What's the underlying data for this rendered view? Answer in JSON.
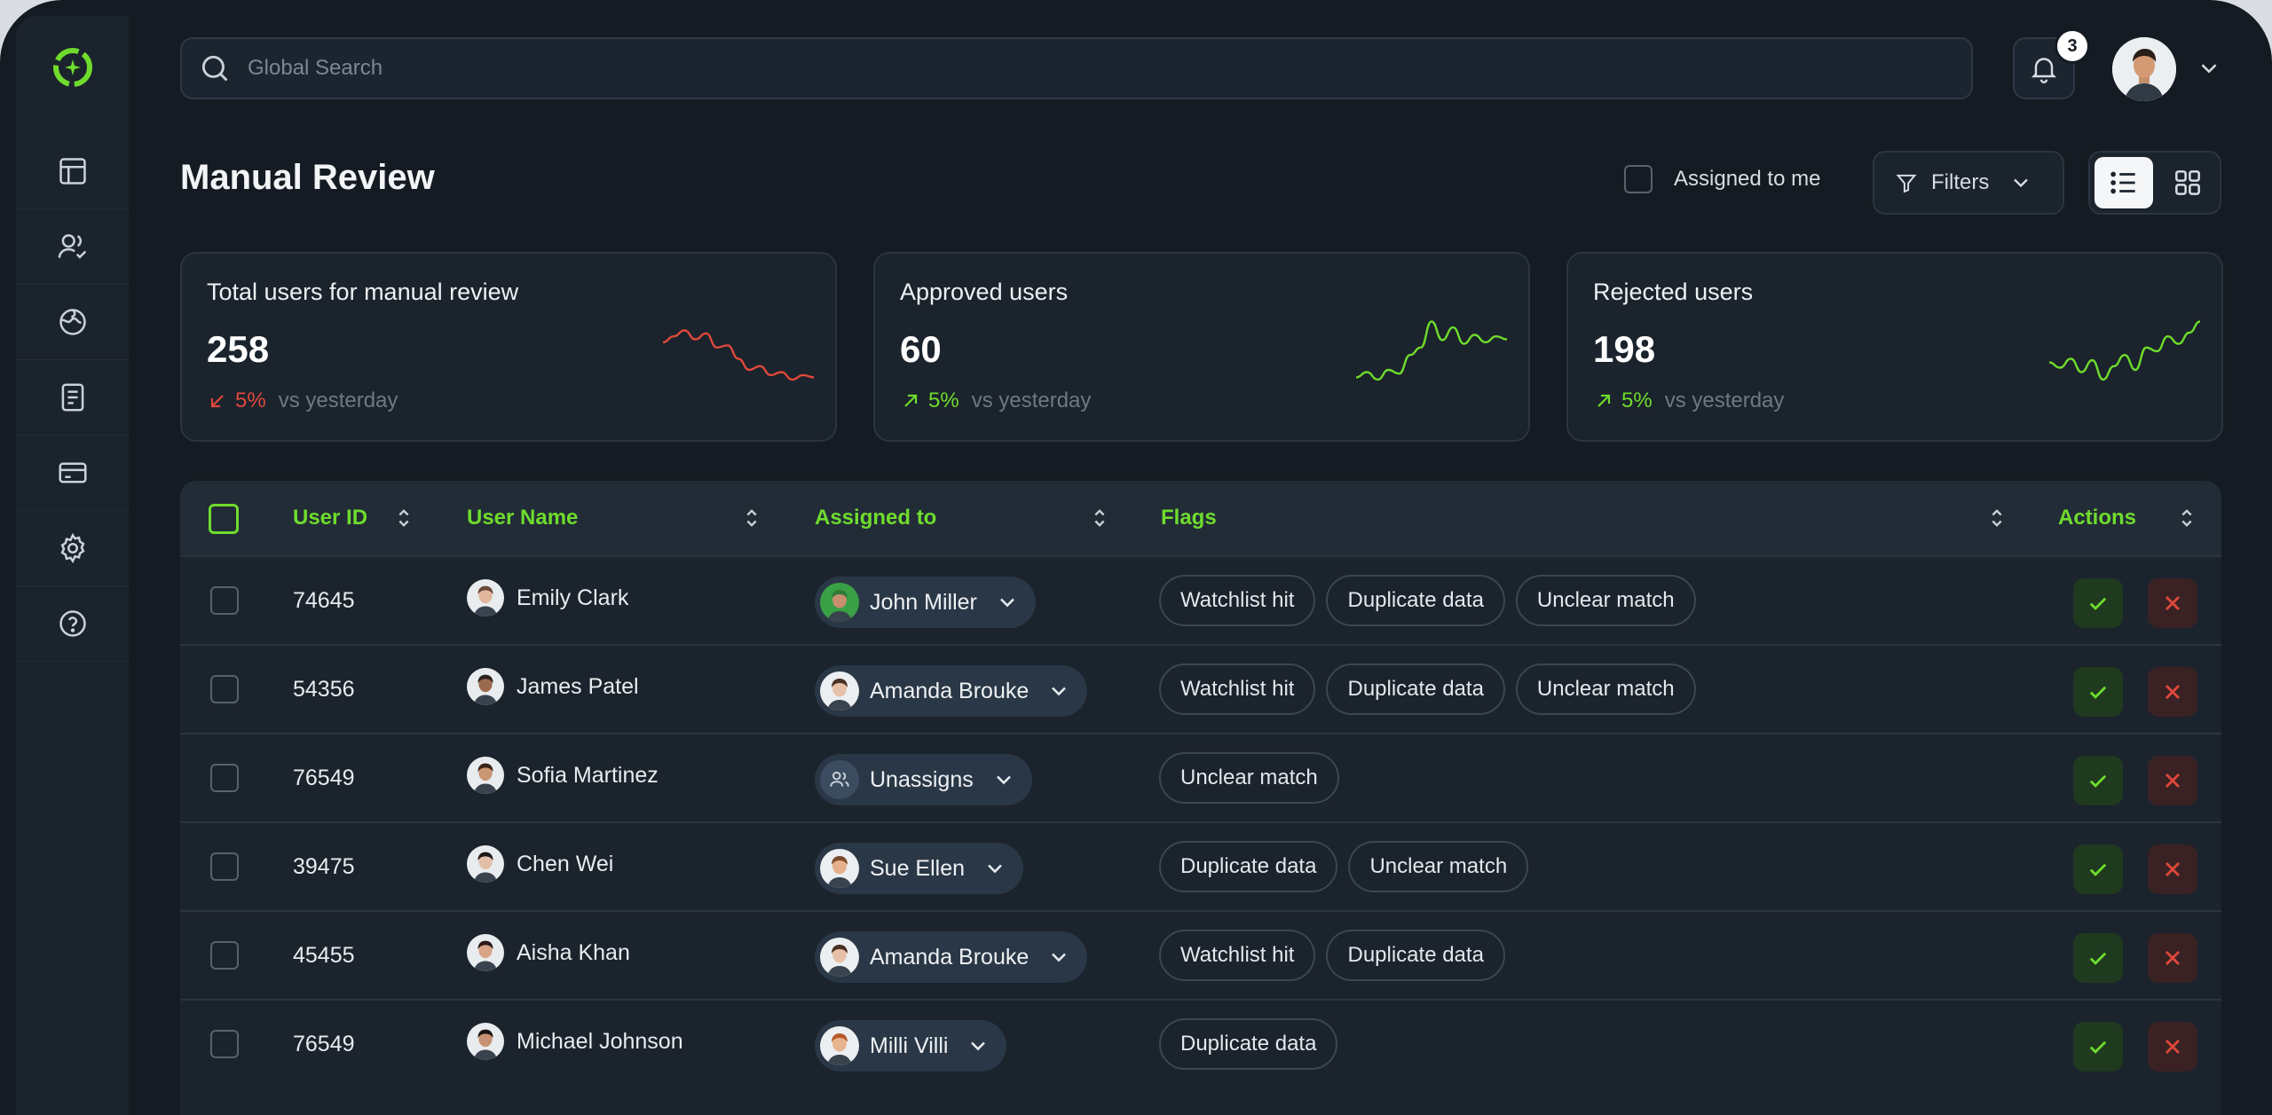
{
  "search": {
    "placeholder": "Global Search"
  },
  "notifications": {
    "count": "3"
  },
  "page": {
    "title": "Manual Review"
  },
  "toolbar": {
    "assigned_label": "Assigned to me",
    "filters_label": "Filters"
  },
  "stats": [
    {
      "label": "Total users for manual review",
      "value": "258",
      "delta": "5%",
      "delta_direction": "down",
      "vs": "vs yesterday",
      "color": "#e0483b",
      "trend": [
        0.62,
        0.7,
        0.78,
        0.66,
        0.74,
        0.55,
        0.58,
        0.4,
        0.25,
        0.3,
        0.18,
        0.22,
        0.12,
        0.18,
        0.15
      ]
    },
    {
      "label": "Approved users",
      "value": "60",
      "delta": "5%",
      "delta_direction": "up",
      "vs": "vs yesterday",
      "color": "#6fdc2d",
      "trend": [
        0.15,
        0.22,
        0.12,
        0.25,
        0.2,
        0.45,
        0.55,
        0.9,
        0.65,
        0.82,
        0.6,
        0.72,
        0.62,
        0.7,
        0.66
      ]
    },
    {
      "label": "Rejected users",
      "value": "198",
      "delta": "5%",
      "delta_direction": "up",
      "vs": "vs yesterday",
      "color": "#6fdc2d",
      "trend": [
        0.35,
        0.28,
        0.4,
        0.22,
        0.38,
        0.12,
        0.3,
        0.45,
        0.25,
        0.55,
        0.5,
        0.7,
        0.6,
        0.75,
        0.9
      ]
    }
  ],
  "table": {
    "columns": {
      "user_id": "User ID",
      "user_name": "User Name",
      "assigned_to": "Assigned to",
      "flags": "Flags",
      "actions": "Actions"
    },
    "rows": [
      {
        "id": "74645",
        "name": "Emily Clark",
        "assignee": "John Miller",
        "flags": [
          "Watchlist hit",
          "Duplicate data",
          "Unclear match"
        ]
      },
      {
        "id": "54356",
        "name": "James Patel",
        "assignee": "Amanda Brouke",
        "flags": [
          "Watchlist hit",
          "Duplicate data",
          "Unclear match"
        ]
      },
      {
        "id": "76549",
        "name": "Sofia Martinez",
        "assignee": "Unassigns",
        "flags": [
          "Unclear match"
        ]
      },
      {
        "id": "39475",
        "name": "Chen Wei",
        "assignee": "Sue Ellen",
        "flags": [
          "Duplicate data",
          "Unclear match"
        ]
      },
      {
        "id": "45455",
        "name": "Aisha Khan",
        "assignee": "Amanda Brouke",
        "flags": [
          "Watchlist hit",
          "Duplicate data"
        ]
      },
      {
        "id": "76549",
        "name": "Michael Johnson",
        "assignee": "Milli Villi",
        "flags": [
          "Duplicate data"
        ]
      }
    ]
  },
  "colors": {
    "accent": "#6fdc2d",
    "danger": "#e0483b",
    "background": "#151b22",
    "panel": "#1b232c"
  }
}
